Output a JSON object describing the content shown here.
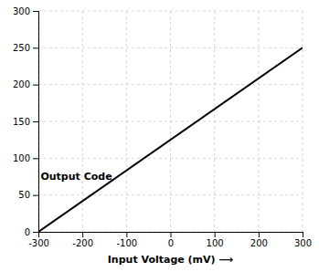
{
  "chart_data": {
    "type": "line",
    "xlabel": "Input Voltage (mV)  ⟶",
    "x": [
      -300,
      300
    ],
    "values": [
      0,
      250
    ],
    "color": "#000000",
    "xlim": [
      -300,
      300
    ],
    "ylim": [
      0,
      300
    ],
    "xticks": [
      -300,
      -200,
      -100,
      0,
      100,
      200,
      300
    ],
    "yticks": [
      0,
      50,
      100,
      150,
      200,
      250,
      300
    ],
    "grid": true,
    "annotations": [
      {
        "text": "Output Code",
        "x": -295,
        "y": 75,
        "arrow_x": -205,
        "arrow_y": 75
      }
    ]
  }
}
